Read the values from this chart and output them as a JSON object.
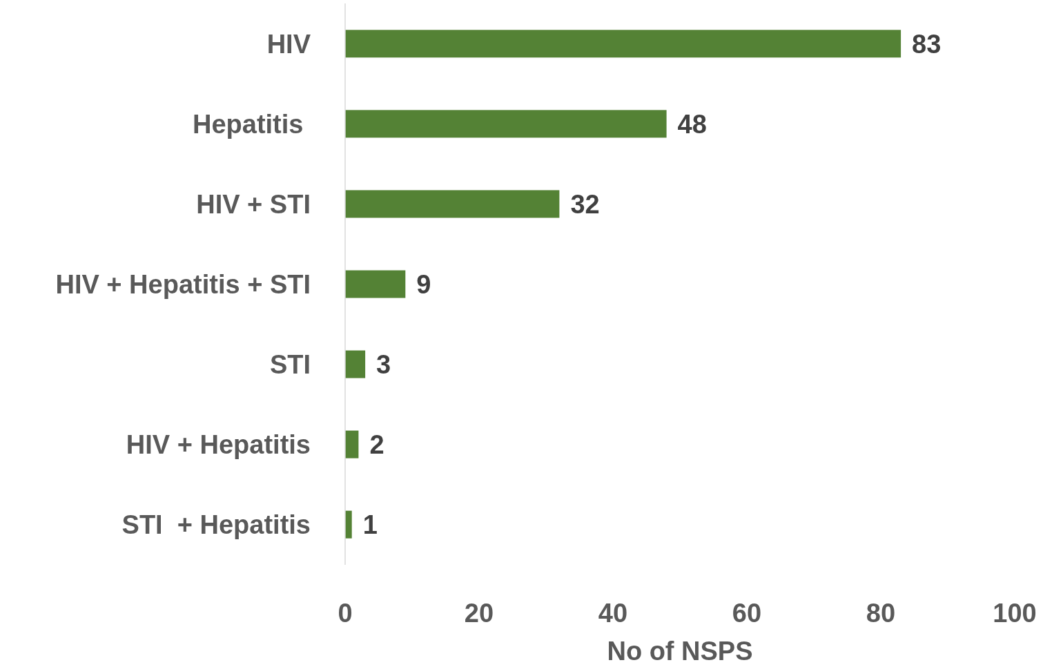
{
  "chart_data": {
    "type": "bar",
    "orientation": "horizontal",
    "xlabel": "No of NSPS",
    "categories": [
      "HIV",
      "Hepatitis ",
      "HIV + STI",
      "HIV + Hepatitis + STI",
      "STI",
      "HIV + Hepatitis",
      "STI  + Hepatitis"
    ],
    "values": [
      83,
      48,
      32,
      9,
      3,
      2,
      1
    ],
    "color": "#548235",
    "xlim": [
      0,
      100
    ],
    "xticks": [
      0,
      20,
      40,
      60,
      80,
      100
    ],
    "data_labels": true,
    "grid": false
  }
}
